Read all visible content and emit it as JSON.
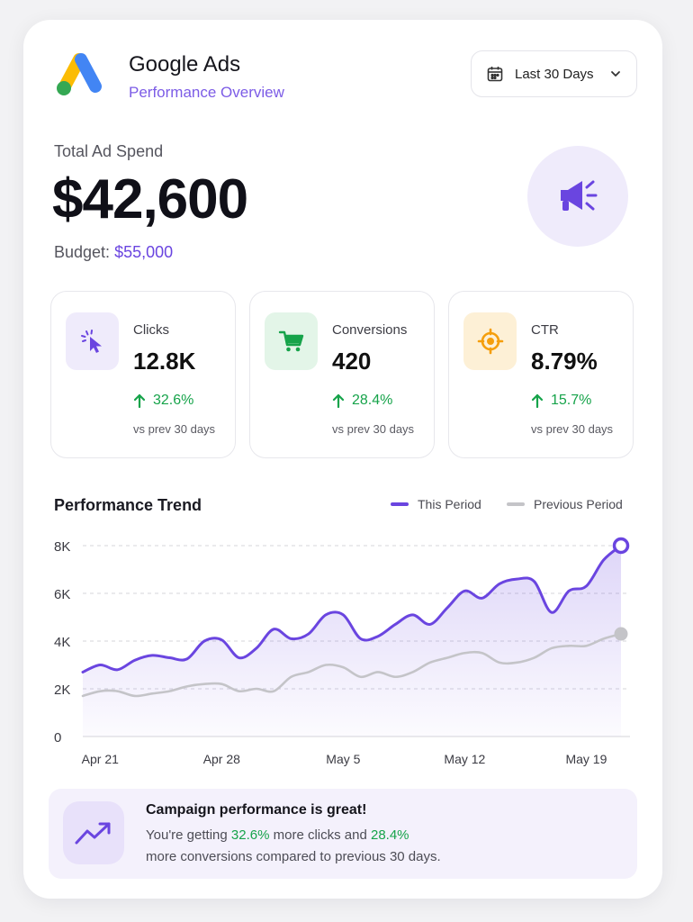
{
  "header": {
    "title": "Google Ads",
    "subtitle": "Performance Overview",
    "date_range": "Last 30 Days"
  },
  "spend": {
    "label": "Total Ad Spend",
    "value": "$42,600",
    "budget_label": "Budget:",
    "budget_value": "$55,000"
  },
  "kpis": [
    {
      "label": "Clicks",
      "value": "12.8K",
      "change": "32.6%",
      "compare": "vs prev 30 days",
      "icon": "cursor-click-icon",
      "icon_color": "#6a45e0",
      "icon_bg": "#efebfb"
    },
    {
      "label": "Conversions",
      "value": "420",
      "change": "28.4%",
      "compare": "vs prev 30 days",
      "icon": "shopping-cart-icon",
      "icon_color": "#16a34a",
      "icon_bg": "#e3f5e8"
    },
    {
      "label": "CTR",
      "value": "8.79%",
      "change": "15.7%",
      "compare": "vs prev 30 days",
      "icon": "target-icon",
      "icon_color": "#f59e0b",
      "icon_bg": "#fdf0d6"
    }
  ],
  "trend": {
    "title": "Performance Trend",
    "legend_current": "This Period",
    "legend_previous": "Previous Period"
  },
  "colors": {
    "accent": "#6a45e0",
    "positive": "#16a34a",
    "previous_series": "#c4c4c8"
  },
  "chart_data": {
    "type": "area",
    "title": "Performance Trend",
    "ylim": [
      0,
      8000
    ],
    "yticks": [
      0,
      2000,
      4000,
      6000,
      8000
    ],
    "ytick_labels": [
      "0",
      "2K",
      "4K",
      "6K",
      "8K"
    ],
    "x_tick_labels": [
      "Apr 21",
      "Apr 28",
      "May 5",
      "May 12",
      "May 19"
    ],
    "x": [
      "Apr 20",
      "Apr 21",
      "Apr 22",
      "Apr 23",
      "Apr 24",
      "Apr 25",
      "Apr 26",
      "Apr 27",
      "Apr 28",
      "Apr 29",
      "Apr 30",
      "May 1",
      "May 2",
      "May 3",
      "May 4",
      "May 5",
      "May 6",
      "May 7",
      "May 8",
      "May 9",
      "May 10",
      "May 11",
      "May 12",
      "May 13",
      "May 14",
      "May 15",
      "May 16",
      "May 17",
      "May 18",
      "May 19",
      "May 20",
      "May 21"
    ],
    "grid": true,
    "legend": "top-right",
    "series": [
      {
        "name": "This Period",
        "color": "#6a45e0",
        "fill": true,
        "values": [
          2700,
          3000,
          2800,
          3200,
          3400,
          3300,
          3250,
          4000,
          4050,
          3300,
          3700,
          4500,
          4100,
          4300,
          5100,
          5100,
          4100,
          4200,
          4700,
          5100,
          4700,
          5400,
          6100,
          5800,
          6400,
          6600,
          6500,
          5200,
          6100,
          6300,
          7400,
          8000
        ]
      },
      {
        "name": "Previous Period",
        "color": "#c4c4c8",
        "fill": false,
        "values": [
          1700,
          1900,
          1900,
          1700,
          1800,
          1900,
          2100,
          2200,
          2200,
          1900,
          2000,
          1900,
          2500,
          2700,
          3000,
          2900,
          2500,
          2700,
          2500,
          2700,
          3100,
          3300,
          3500,
          3500,
          3100,
          3100,
          3300,
          3700,
          3800,
          3800,
          4100,
          4300
        ]
      }
    ]
  },
  "callout": {
    "title": "Campaign performance is great!",
    "line1_pre": "You're getting",
    "clicks_change": "32.6%",
    "line1_mid": "more clicks and",
    "conv_change": "28.4%",
    "line2": "more conversions compared to previous 30 days."
  }
}
